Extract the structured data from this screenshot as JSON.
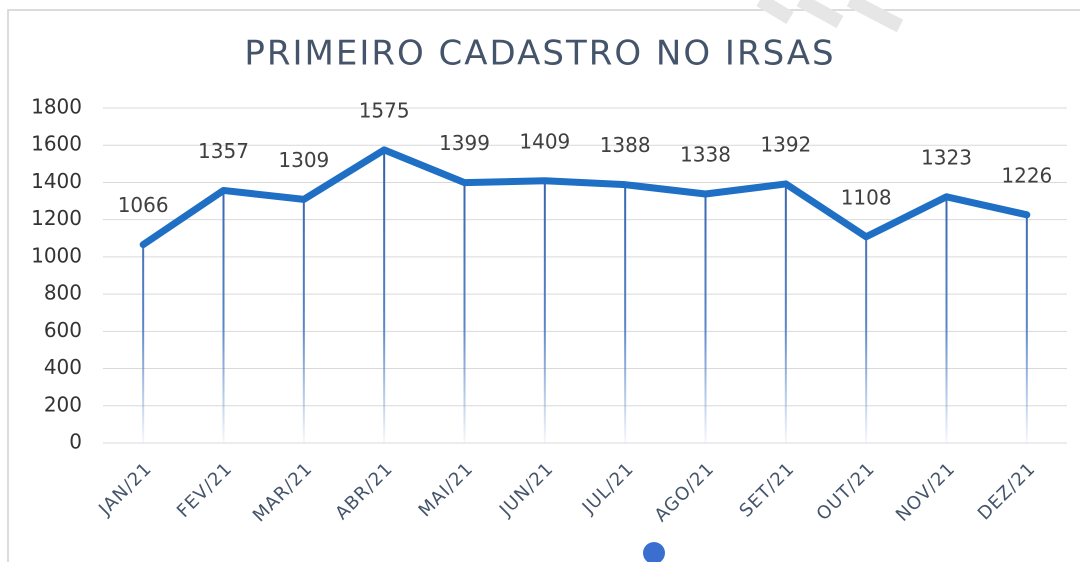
{
  "chart_data": {
    "type": "line",
    "title": "PRIMEIRO CADASTRO NO IRSAS",
    "categories": [
      "JAN/21",
      "FEV/21",
      "MAR/21",
      "ABR/21",
      "MAI/21",
      "JUN/21",
      "JUL/21",
      "AGO/21",
      "SET/21",
      "OUT/21",
      "NOV/21",
      "DEZ/21"
    ],
    "values": [
      1066,
      1357,
      1309,
      1575,
      1399,
      1409,
      1388,
      1338,
      1392,
      1108,
      1323,
      1226
    ],
    "color": "#1f6fc5",
    "ylim": [
      0,
      1800
    ],
    "yticks": [
      0,
      200,
      400,
      600,
      800,
      1000,
      1200,
      1400,
      1600,
      1800
    ],
    "grid": true,
    "data_labels": true,
    "drop_lines": true
  }
}
